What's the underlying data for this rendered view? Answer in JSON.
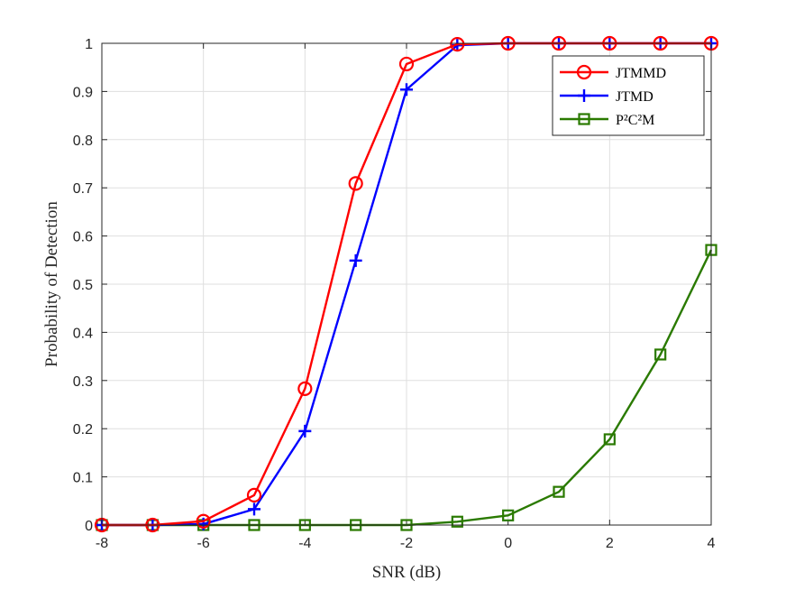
{
  "chart_data": {
    "type": "line",
    "xlabel": "SNR (dB)",
    "ylabel": "Probability of Detection",
    "xlim": [
      -8,
      4
    ],
    "ylim": [
      0,
      1
    ],
    "xticks": [
      -8,
      -6,
      -4,
      -2,
      0,
      2,
      4
    ],
    "yticks": [
      0,
      0.1,
      0.2,
      0.3,
      0.4,
      0.5,
      0.6,
      0.7,
      0.8,
      0.9,
      1
    ],
    "xtick_labels": [
      "-8",
      "-6",
      "-4",
      "-2",
      "0",
      "2",
      "4"
    ],
    "ytick_labels": [
      "0",
      "0.1",
      "0.2",
      "0.3",
      "0.4",
      "0.5",
      "0.6",
      "0.7",
      "0.8",
      "0.9",
      "1"
    ],
    "grid": true,
    "legend_position": "top-right",
    "x": [
      -8,
      -7,
      -6,
      -5,
      -4,
      -3,
      -2,
      -1,
      0,
      1,
      2,
      3,
      4
    ],
    "series": [
      {
        "name": "JTMMD",
        "color": "#ff0000",
        "marker": "circle",
        "values": [
          0,
          0,
          0.008,
          0.062,
          0.283,
          0.709,
          0.957,
          0.998,
          1,
          1,
          1,
          1,
          1
        ]
      },
      {
        "name": "JTMD",
        "color": "#0000ff",
        "marker": "plus",
        "values": [
          0,
          0,
          0.002,
          0.033,
          0.195,
          0.549,
          0.904,
          0.996,
          1,
          1,
          1,
          1,
          1
        ]
      },
      {
        "name": "P²C²M",
        "color": "#2a7a00",
        "marker": "square",
        "values": [
          0,
          0,
          0,
          0,
          0,
          0,
          0,
          0.007,
          0.02,
          0.069,
          0.178,
          0.354,
          0.571
        ]
      }
    ]
  }
}
